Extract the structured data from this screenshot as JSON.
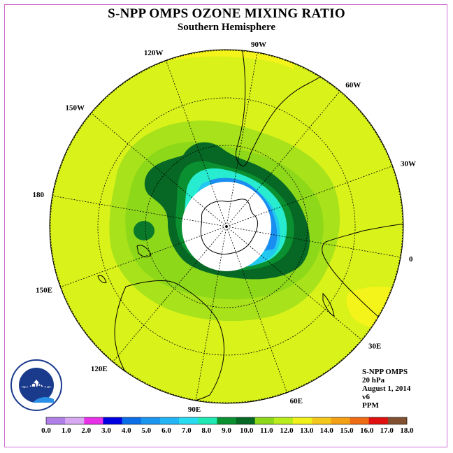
{
  "header": {
    "title": "S-NPP OMPS OZONE MIXING RATIO",
    "subtitle": "Southern Hemisphere"
  },
  "map": {
    "projection": "south-polar-stereographic",
    "longitude_labels": [
      "90W",
      "60W",
      "30W",
      "0",
      "30E",
      "60E",
      "90E",
      "120E",
      "150E",
      "180",
      "150W",
      "120W"
    ],
    "colors": {
      "field_background": "#d9f21a",
      "no_data_center": "#ffffff",
      "coastline": "#000000",
      "graticule": "#000000"
    }
  },
  "info": {
    "line1": "S-NPP OMPS",
    "line2": "20 hPa",
    "line3": "August 1, 2014",
    "line4": "v6",
    "line5": "PPM"
  },
  "logo": {
    "text": "NOAA",
    "ring_text": "NATIONAL OCEANIC AND ATMOSPHERIC ADMINISTRATION",
    "ring_text_bottom": "U.S. DEPARTMENT OF COMMERCE"
  },
  "colorbar": {
    "ticks": [
      "0.0",
      "1.0",
      "2.0",
      "3.0",
      "4.0",
      "5.0",
      "6.0",
      "7.0",
      "8.0",
      "9.0",
      "10.0",
      "11.0",
      "12.0",
      "13.0",
      "14.0",
      "15.0",
      "16.0",
      "17.0",
      "18.0"
    ],
    "colors": [
      "#b080e8",
      "#d8a8f0",
      "#e830e8",
      "#0000e0",
      "#0b6ee6",
      "#1a96f0",
      "#22b4f4",
      "#28dcf0",
      "#1ee8b4",
      "#0a9030",
      "#066824",
      "#8ed81a",
      "#b8ec1a",
      "#f0f01a",
      "#f4c81a",
      "#f4a014",
      "#f06c14",
      "#e01010",
      "#805030"
    ]
  }
}
